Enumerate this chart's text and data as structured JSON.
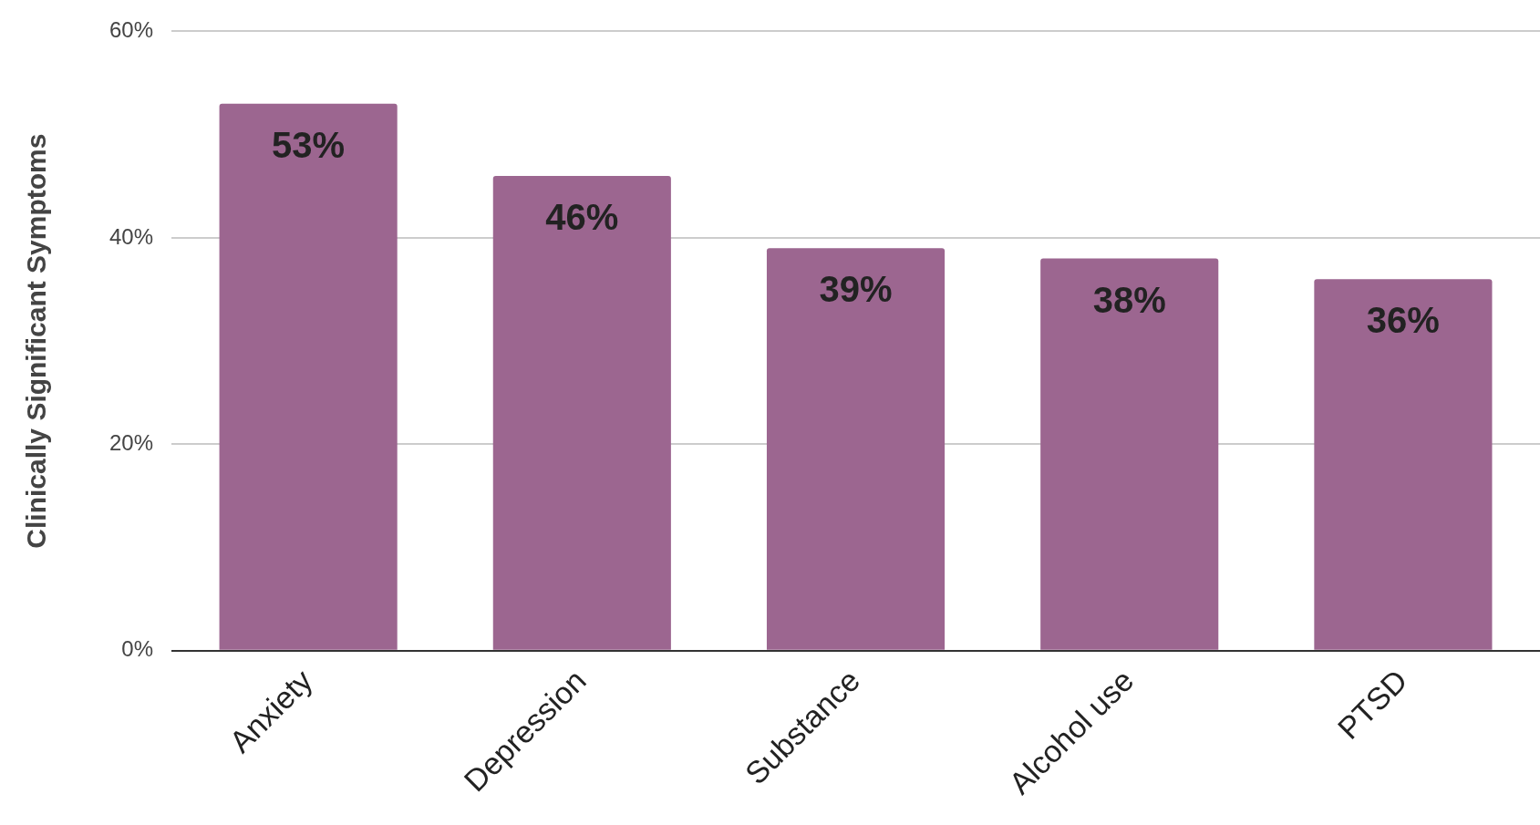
{
  "chart_data": {
    "type": "bar",
    "ylabel": "Clinically Significant Symptoms",
    "categories": [
      "Anxiety",
      "Depression",
      "Substance",
      "Alcohol use",
      "PTSD"
    ],
    "values": [
      53,
      46,
      39,
      38,
      36
    ],
    "color": "#9c6690",
    "value_labels": [
      "53%",
      "46%",
      "39%",
      "38%",
      "36%"
    ],
    "ylim": [
      0,
      60
    ],
    "yticks": [
      {
        "value": 0,
        "label": "0%"
      },
      {
        "value": 20,
        "label": "20%"
      },
      {
        "value": 40,
        "label": "40%"
      },
      {
        "value": 60,
        "label": "60%"
      }
    ],
    "grid": "y",
    "legend": false
  }
}
